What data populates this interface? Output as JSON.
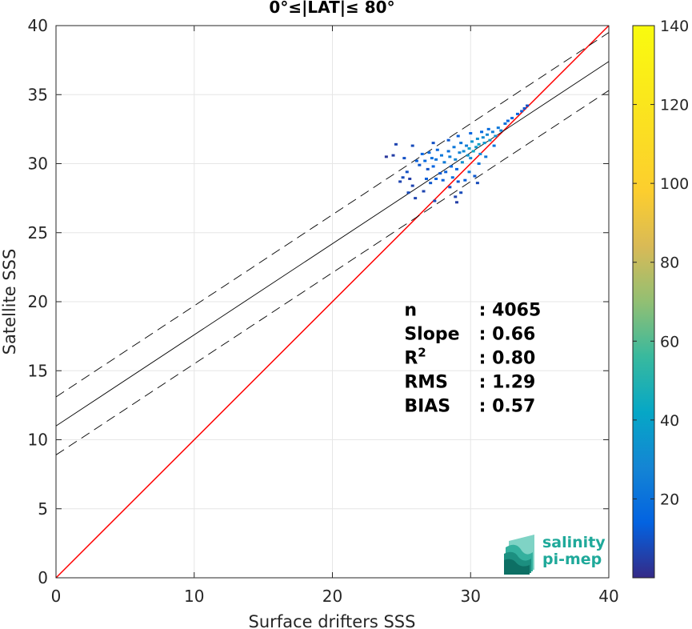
{
  "chart_data": {
    "type": "scatter",
    "title": "0°≤|LAT|≤ 80°",
    "xlabel": "Surface drifters SSS",
    "ylabel": "Satellite SSS",
    "xlim": [
      0,
      40
    ],
    "ylim": [
      0,
      40
    ],
    "x_ticks": [
      0,
      10,
      20,
      30,
      40
    ],
    "y_ticks": [
      0,
      5,
      10,
      15,
      20,
      25,
      30,
      35,
      40
    ],
    "grid": true,
    "colorbar": {
      "range": [
        0,
        140
      ],
      "ticks": [
        20,
        40,
        60,
        80,
        100,
        120,
        140
      ],
      "colormap": "parula"
    },
    "lines": {
      "one_to_one": {
        "color": "#ff0000",
        "x": [
          0,
          40
        ],
        "y": [
          0,
          40
        ]
      },
      "regression": {
        "color": "#000000",
        "intercept": 11.0,
        "slope": 0.66
      },
      "upper_bound": {
        "color": "#000000",
        "dash": true,
        "intercept": 13.1,
        "slope": 0.66
      },
      "lower_bound": {
        "color": "#000000",
        "dash": true,
        "intercept": 8.9,
        "slope": 0.66
      }
    },
    "density_points": [
      [
        24.9,
        28.7
      ],
      [
        25.1,
        29.0
      ],
      [
        25.4,
        29.4
      ],
      [
        25.6,
        28.9
      ],
      [
        25.8,
        28.4
      ],
      [
        26.1,
        30.2
      ],
      [
        26.3,
        29.9
      ],
      [
        26.5,
        30.7
      ],
      [
        26.7,
        30.2
      ],
      [
        26.9,
        29.6
      ],
      [
        27.0,
        30.8
      ],
      [
        27.2,
        30.4
      ],
      [
        27.3,
        29.8
      ],
      [
        27.5,
        30.3
      ],
      [
        27.6,
        31.0
      ],
      [
        27.8,
        29.3
      ],
      [
        27.9,
        30.6
      ],
      [
        28.1,
        30.1
      ],
      [
        28.2,
        29.4
      ],
      [
        28.4,
        30.9
      ],
      [
        28.5,
        30.5
      ],
      [
        28.6,
        29.8
      ],
      [
        28.8,
        31.2
      ],
      [
        28.9,
        30.3
      ],
      [
        29.0,
        29.6
      ],
      [
        29.2,
        30.8
      ],
      [
        29.3,
        31.5
      ],
      [
        29.4,
        30.1
      ],
      [
        29.5,
        30.9
      ],
      [
        29.7,
        31.3
      ],
      [
        29.8,
        30.6
      ],
      [
        29.9,
        31.1
      ],
      [
        30.0,
        30.4
      ],
      [
        30.1,
        31.6
      ],
      [
        30.2,
        30.9
      ],
      [
        30.4,
        31.2
      ],
      [
        30.5,
        31.8
      ],
      [
        30.6,
        31.4
      ],
      [
        30.7,
        30.7
      ],
      [
        30.9,
        31.9
      ],
      [
        31.0,
        31.5
      ],
      [
        31.2,
        32.1
      ],
      [
        31.4,
        31.7
      ],
      [
        31.6,
        32.3
      ],
      [
        31.8,
        32.0
      ],
      [
        32.0,
        32.6
      ],
      [
        32.2,
        32.4
      ],
      [
        32.5,
        32.9
      ],
      [
        33.0,
        33.3
      ],
      [
        33.4,
        33.6
      ],
      [
        33.7,
        33.8
      ],
      [
        33.9,
        34.0
      ],
      [
        34.1,
        34.2
      ],
      [
        26.8,
        28.9
      ],
      [
        27.1,
        28.6
      ],
      [
        27.5,
        28.9
      ],
      [
        28.0,
        28.8
      ],
      [
        28.5,
        28.3
      ],
      [
        29.1,
        28.7
      ],
      [
        29.3,
        27.9
      ],
      [
        29.6,
        28.8
      ],
      [
        30.3,
        29.1
      ],
      [
        30.5,
        28.6
      ],
      [
        28.9,
        27.6
      ],
      [
        29.0,
        27.2
      ],
      [
        27.4,
        27.3
      ],
      [
        26.0,
        27.5
      ],
      [
        25.5,
        27.9
      ],
      [
        26.6,
        28.0
      ],
      [
        25.2,
        30.4
      ],
      [
        24.4,
        30.6
      ],
      [
        23.9,
        30.5
      ],
      [
        24.6,
        31.4
      ],
      [
        25.8,
        31.3
      ],
      [
        27.3,
        31.5
      ],
      [
        28.4,
        31.7
      ],
      [
        29.1,
        32.0
      ],
      [
        30.0,
        32.2
      ],
      [
        30.8,
        32.3
      ],
      [
        31.3,
        32.5
      ],
      [
        32.7,
        33.1
      ],
      [
        31.7,
        31.3
      ],
      [
        31.1,
        30.5
      ],
      [
        30.6,
        30.0
      ],
      [
        29.9,
        29.4
      ],
      [
        28.7,
        29.0
      ]
    ],
    "density_values": [
      4,
      5,
      6,
      3,
      4,
      8,
      7,
      9,
      10,
      6,
      11,
      12,
      9,
      13,
      10,
      7,
      14,
      15,
      8,
      12,
      16,
      10,
      14,
      18,
      9,
      17,
      13,
      20,
      19,
      16,
      22,
      24,
      18,
      21,
      26,
      23,
      20,
      25,
      17,
      19,
      22,
      18,
      24,
      15,
      20,
      14,
      17,
      12,
      10,
      9,
      8,
      7,
      6,
      8,
      7,
      9,
      8,
      6,
      7,
      5,
      8,
      7,
      5,
      4,
      3,
      5,
      4,
      5,
      4,
      6,
      3,
      2,
      4,
      5,
      6,
      7,
      8,
      9,
      10,
      11,
      9,
      12,
      14,
      13,
      15,
      11
    ],
    "stats": [
      {
        "label": "n",
        "value": ": 4065"
      },
      {
        "label": "Slope",
        "value": ": 0.66"
      },
      {
        "label": "R",
        "sup": "2",
        "value": ": 0.80"
      },
      {
        "label": "RMS",
        "value": ": 1.29"
      },
      {
        "label": "BIAS",
        "value": ": 0.57"
      }
    ]
  },
  "logo": {
    "line1": "salinity",
    "line2": "pi-mep"
  }
}
